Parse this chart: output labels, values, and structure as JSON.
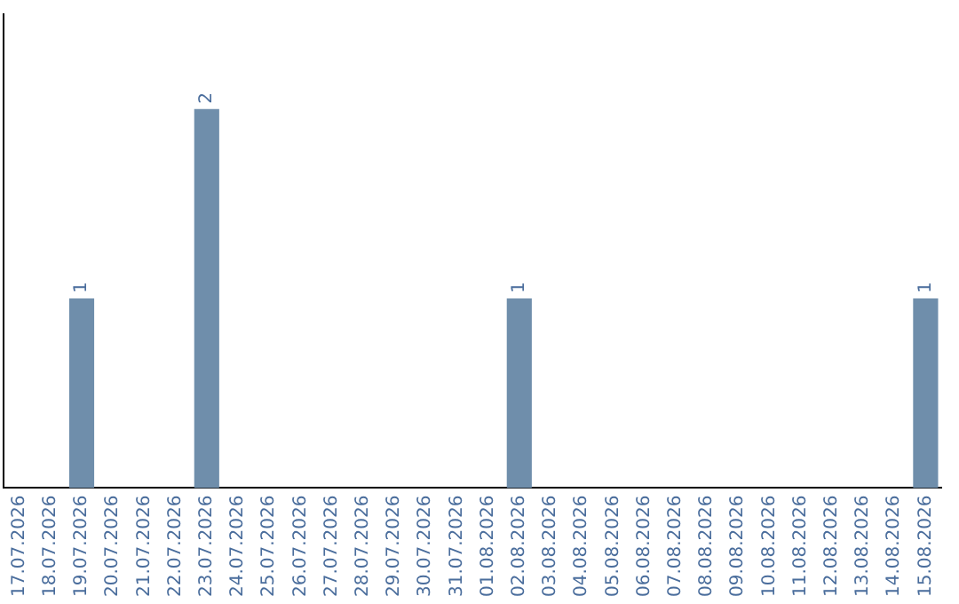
{
  "chart_data": {
    "type": "bar",
    "categories": [
      "17.07.2026",
      "18.07.2026",
      "19.07.2026",
      "20.07.2026",
      "21.07.2026",
      "22.07.2026",
      "23.07.2026",
      "24.07.2026",
      "25.07.2026",
      "26.07.2026",
      "27.07.2026",
      "28.07.2026",
      "29.07.2026",
      "30.07.2026",
      "31.07.2026",
      "01.08.2026",
      "02.08.2026",
      "03.08.2026",
      "04.08.2026",
      "05.08.2026",
      "06.08.2026",
      "07.08.2026",
      "08.08.2026",
      "09.08.2026",
      "10.08.2026",
      "11.08.2026",
      "12.08.2026",
      "13.08.2026",
      "14.08.2026",
      "15.08.2026"
    ],
    "values": [
      0,
      0,
      1,
      0,
      0,
      0,
      2,
      0,
      0,
      0,
      0,
      0,
      0,
      0,
      0,
      0,
      1,
      0,
      0,
      0,
      0,
      0,
      0,
      0,
      0,
      0,
      0,
      0,
      0,
      1
    ],
    "color": "#6f8eab",
    "value_labels": [
      null,
      null,
      "1",
      null,
      null,
      null,
      "2",
      null,
      null,
      null,
      null,
      null,
      null,
      null,
      null,
      null,
      "1",
      null,
      null,
      null,
      null,
      null,
      null,
      null,
      null,
      null,
      null,
      null,
      null,
      "1"
    ],
    "tick_labels": "x"
  }
}
